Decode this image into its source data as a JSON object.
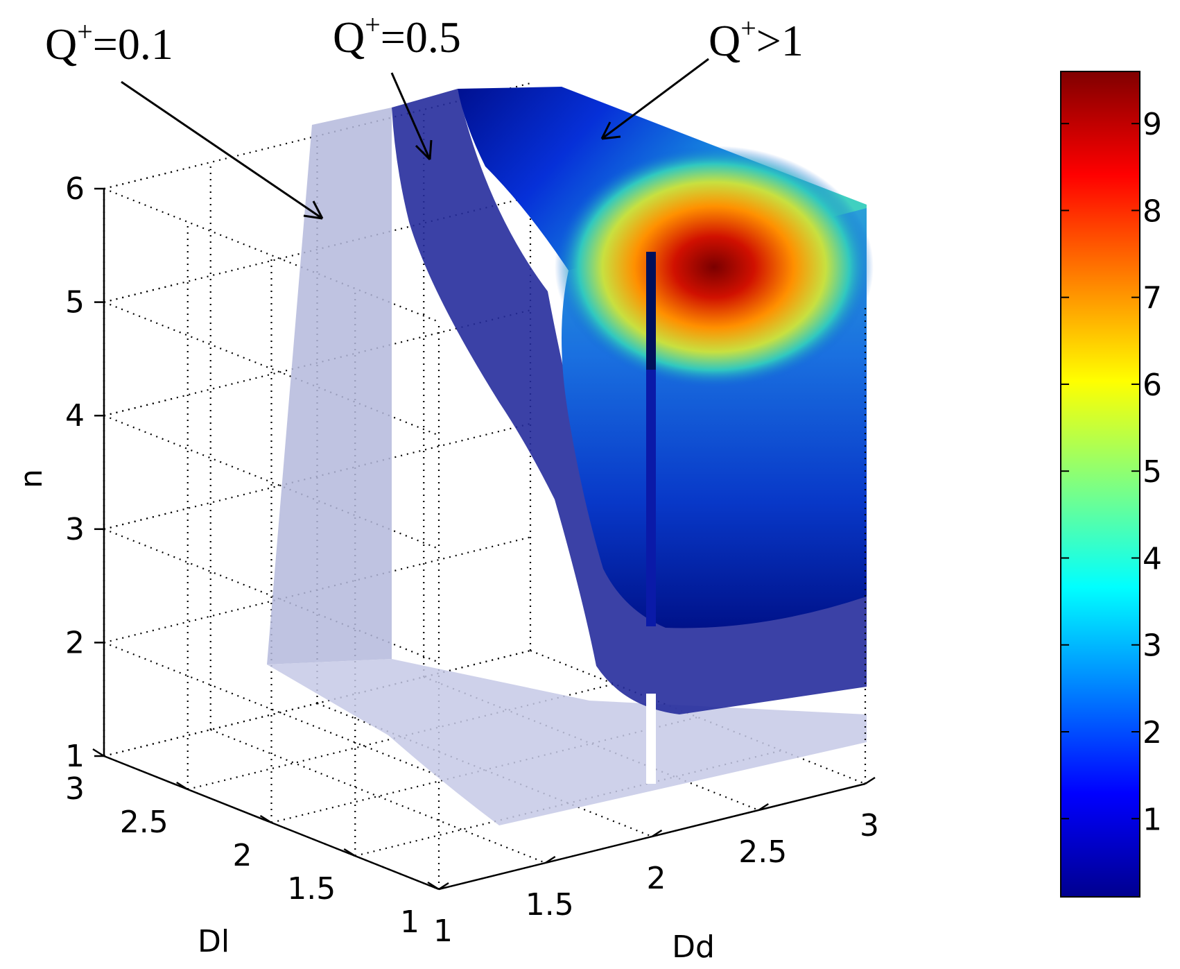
{
  "chart_data": {
    "type": "surface3d",
    "axes": {
      "x": {
        "label": "Dd",
        "ticks": [
          "1",
          "1.5",
          "2",
          "2.5",
          "3"
        ],
        "range": [
          1,
          3
        ]
      },
      "y": {
        "label": "Dl",
        "ticks": [
          "1",
          "1.5",
          "2",
          "2.5",
          "3"
        ],
        "range": [
          1,
          3
        ]
      },
      "z": {
        "label": "n",
        "ticks": [
          "1",
          "2",
          "3",
          "4",
          "5",
          "6"
        ],
        "range": [
          1,
          6
        ]
      }
    },
    "grid": true,
    "surfaces": [
      {
        "name": "Q+=0.1",
        "color": "#b4b8dc",
        "style": "translucent"
      },
      {
        "name": "Q+=0.5",
        "color": "#262c9c",
        "style": "translucent"
      },
      {
        "name": "Q+>1",
        "color": "jet colormap",
        "style": "opaque"
      }
    ],
    "annotations": [
      {
        "base": "Q",
        "sup": "+",
        "rest": "=0.1"
      },
      {
        "base": "Q",
        "sup": "+",
        "rest": "=0.5"
      },
      {
        "base": "Q",
        "sup": "+",
        "rest": ">1"
      }
    ],
    "colorbar": {
      "colormap": "jet",
      "range": [
        0.1,
        9.6
      ],
      "ticks": [
        "1",
        "2",
        "3",
        "4",
        "5",
        "6",
        "7",
        "8",
        "9"
      ]
    }
  }
}
